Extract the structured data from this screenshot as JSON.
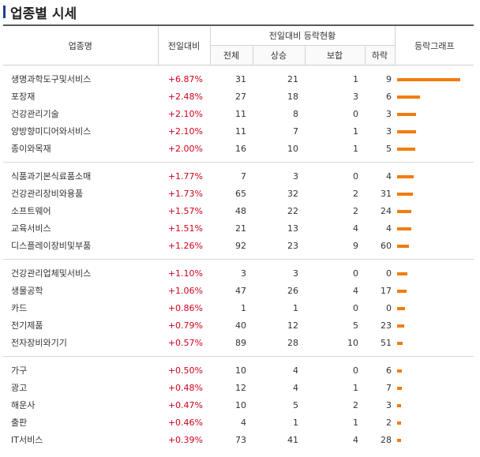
{
  "title": "업종별 시세",
  "headers": {
    "name": "업종명",
    "change": "전일대비",
    "group": "전일대비 등락현황",
    "total": "전체",
    "up": "상승",
    "flat": "보합",
    "down": "하락",
    "graph": "등락그래프"
  },
  "groups": [
    [
      {
        "name": "생명과학도구및서비스",
        "rate": "+6.87%",
        "total": "31",
        "up": "21",
        "flat": "1",
        "down": "9",
        "rate_value": 6.87
      },
      {
        "name": "포장재",
        "rate": "+2.48%",
        "total": "27",
        "up": "18",
        "flat": "3",
        "down": "6",
        "rate_value": 2.48
      },
      {
        "name": "건강관리기술",
        "rate": "+2.10%",
        "total": "11",
        "up": "8",
        "flat": "0",
        "down": "3",
        "rate_value": 2.1
      },
      {
        "name": "양방향미디어와서비스",
        "rate": "+2.10%",
        "total": "11",
        "up": "7",
        "flat": "1",
        "down": "3",
        "rate_value": 2.1
      },
      {
        "name": "종이와목재",
        "rate": "+2.00%",
        "total": "16",
        "up": "10",
        "flat": "1",
        "down": "5",
        "rate_value": 2.0
      }
    ],
    [
      {
        "name": "식품과기본식료품소매",
        "rate": "+1.77%",
        "total": "7",
        "up": "3",
        "flat": "0",
        "down": "4",
        "rate_value": 1.77
      },
      {
        "name": "건강관리장비와용품",
        "rate": "+1.73%",
        "total": "65",
        "up": "32",
        "flat": "2",
        "down": "31",
        "rate_value": 1.73
      },
      {
        "name": "소프트웨어",
        "rate": "+1.57%",
        "total": "48",
        "up": "22",
        "flat": "2",
        "down": "24",
        "rate_value": 1.57
      },
      {
        "name": "교육서비스",
        "rate": "+1.51%",
        "total": "21",
        "up": "13",
        "flat": "4",
        "down": "4",
        "rate_value": 1.51
      },
      {
        "name": "디스플레이장비및부품",
        "rate": "+1.26%",
        "total": "92",
        "up": "23",
        "flat": "9",
        "down": "60",
        "rate_value": 1.26
      }
    ],
    [
      {
        "name": "건강관리업체및서비스",
        "rate": "+1.10%",
        "total": "3",
        "up": "3",
        "flat": "0",
        "down": "0",
        "rate_value": 1.1
      },
      {
        "name": "생물공학",
        "rate": "+1.06%",
        "total": "47",
        "up": "26",
        "flat": "4",
        "down": "17",
        "rate_value": 1.06
      },
      {
        "name": "카드",
        "rate": "+0.86%",
        "total": "1",
        "up": "1",
        "flat": "0",
        "down": "0",
        "rate_value": 0.86
      },
      {
        "name": "전기제품",
        "rate": "+0.79%",
        "total": "40",
        "up": "12",
        "flat": "5",
        "down": "23",
        "rate_value": 0.79
      },
      {
        "name": "전자장비와기기",
        "rate": "+0.57%",
        "total": "89",
        "up": "28",
        "flat": "10",
        "down": "51",
        "rate_value": 0.57
      }
    ],
    [
      {
        "name": "가구",
        "rate": "+0.50%",
        "total": "10",
        "up": "4",
        "flat": "0",
        "down": "6",
        "rate_value": 0.5
      },
      {
        "name": "광고",
        "rate": "+0.48%",
        "total": "12",
        "up": "4",
        "flat": "1",
        "down": "7",
        "rate_value": 0.48
      },
      {
        "name": "해운사",
        "rate": "+0.47%",
        "total": "10",
        "up": "5",
        "flat": "2",
        "down": "3",
        "rate_value": 0.47
      },
      {
        "name": "출판",
        "rate": "+0.46%",
        "total": "4",
        "up": "1",
        "flat": "1",
        "down": "2",
        "rate_value": 0.46
      },
      {
        "name": "IT서비스",
        "rate": "+0.39%",
        "total": "73",
        "up": "41",
        "flat": "4",
        "down": "28",
        "rate_value": 0.39
      }
    ]
  ],
  "colors": {
    "up": "#d0021b",
    "bar": "#f07d0e",
    "title_mark": "#1f3f8f"
  }
}
